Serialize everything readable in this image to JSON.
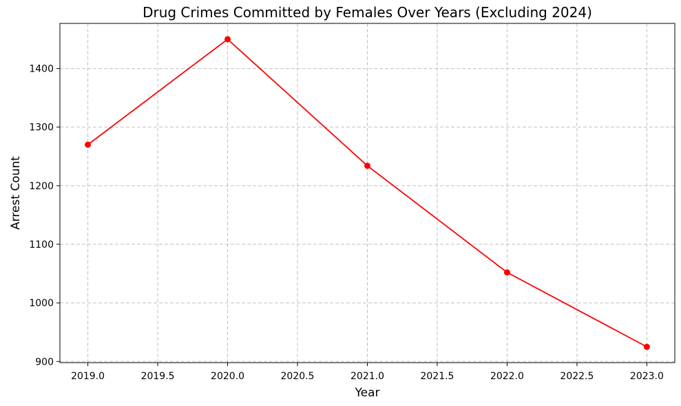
{
  "chart_data": {
    "type": "line",
    "title": "Drug Crimes Committed by Females Over Years (Excluding 2024)",
    "xlabel": "Year",
    "ylabel": "Arrest Count",
    "x": [
      2019,
      2020,
      2021,
      2022,
      2023
    ],
    "series": [
      {
        "values": [
          1270,
          1450,
          1234,
          1052,
          925
        ],
        "color": "#ff0000",
        "marker": "circle"
      }
    ],
    "xlim": [
      2018.8,
      2023.2
    ],
    "ylim": [
      898,
      1477
    ],
    "xticks": [
      2019.0,
      2019.5,
      2020.0,
      2020.5,
      2021.0,
      2021.5,
      2022.0,
      2022.5,
      2023.0
    ],
    "xtick_labels": [
      "2019.0",
      "2019.5",
      "2020.0",
      "2020.5",
      "2021.0",
      "2021.5",
      "2022.0",
      "2022.5",
      "2023.0"
    ],
    "yticks": [
      900,
      1000,
      1100,
      1200,
      1300,
      1400
    ],
    "ytick_labels": [
      "900",
      "1000",
      "1100",
      "1200",
      "1300",
      "1400"
    ],
    "grid": true,
    "grid_style": "dashed"
  }
}
